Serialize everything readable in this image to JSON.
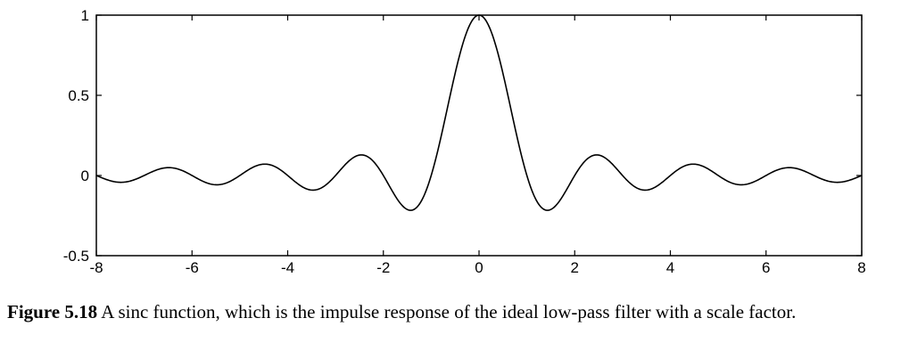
{
  "chart_data": {
    "type": "line",
    "function": "sinc(x) = sin(pi x)/(pi x)",
    "x_range": [
      -8,
      8
    ],
    "xlim": [
      -8,
      8
    ],
    "ylim": [
      -0.5,
      1
    ],
    "xticks": [
      -8,
      -6,
      -4,
      -2,
      0,
      2,
      4,
      6,
      8
    ],
    "xtick_labels": [
      "-8",
      "-6",
      "-4",
      "-2",
      "0",
      "2",
      "4",
      "6",
      "8"
    ],
    "yticks": [
      -0.5,
      0,
      0.5,
      1
    ],
    "ytick_labels": [
      "-0.5",
      "0",
      "0.5",
      "1"
    ],
    "series": [
      {
        "x": [
          -8,
          -7.5,
          -7,
          -6.5,
          -6,
          -5.5,
          -5,
          -4.5,
          -4,
          -3.5,
          -3,
          -2.5,
          -2,
          -1.5,
          -1.43,
          -1,
          -0.5,
          0,
          0.5,
          1,
          1.43,
          1.5,
          2,
          2.5,
          3,
          3.5,
          4,
          4.5,
          5,
          5.5,
          6,
          6.5,
          7,
          7.5,
          8
        ],
        "y": [
          0,
          -0.042,
          0,
          0.049,
          0,
          -0.058,
          0,
          0.071,
          0,
          -0.091,
          0,
          0.127,
          0,
          -0.212,
          -0.217,
          0,
          0.637,
          1,
          0.637,
          0,
          -0.217,
          -0.212,
          0,
          0.127,
          0,
          -0.091,
          0,
          0.071,
          0,
          -0.058,
          0,
          0.049,
          0,
          -0.042,
          0
        ]
      }
    ],
    "line_color": "#000000",
    "grid": false,
    "legend": "none"
  },
  "caption": {
    "label": "Figure 5.18",
    "text": " A sinc function, which is the impulse response of the ideal low-pass filter with a scale factor."
  }
}
